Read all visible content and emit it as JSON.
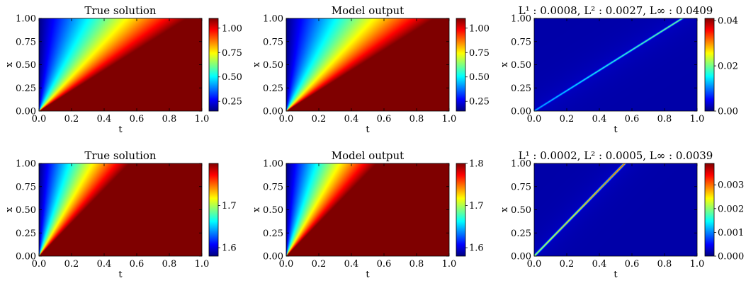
{
  "colors": {
    "colormap": "jet",
    "jet_stops": [
      "#00007f",
      "#0000ff",
      "#007fff",
      "#00ffff",
      "#7fff7f",
      "#ffff00",
      "#ff7f00",
      "#ff0000",
      "#7f0000"
    ],
    "error_background": "#00007f"
  },
  "chart_data": [
    {
      "type": "heatmap",
      "title": "True solution",
      "xlabel": "t",
      "ylabel": "x",
      "xlim": [
        0.0,
        1.0
      ],
      "ylim": [
        0.0,
        1.0
      ],
      "x_ticks": [
        "0.0",
        "0.2",
        "0.4",
        "0.6",
        "0.8",
        "1.0"
      ],
      "y_ticks": [
        "0.00",
        "0.25",
        "0.50",
        "0.75",
        "1.00"
      ],
      "field": {
        "kind": "rarefaction",
        "u_left": 1.1,
        "u_right": 0.15,
        "front_slope": 1.1
      },
      "colorbar": {
        "vmin": 0.15,
        "vmax": 1.1,
        "ticks": [
          0.25,
          0.5,
          0.75,
          1.0
        ],
        "tick_labels": [
          "0.25",
          "0.50",
          "0.75",
          "1.00"
        ]
      }
    },
    {
      "type": "heatmap",
      "title": "Model output",
      "xlabel": "t",
      "ylabel": "x",
      "xlim": [
        0.0,
        1.0
      ],
      "ylim": [
        0.0,
        1.0
      ],
      "x_ticks": [
        "0.0",
        "0.2",
        "0.4",
        "0.6",
        "0.8",
        "1.0"
      ],
      "y_ticks": [
        "0.00",
        "0.25",
        "0.50",
        "0.75",
        "1.00"
      ],
      "field": {
        "kind": "rarefaction",
        "u_left": 1.1,
        "u_right": 0.15,
        "front_slope": 1.1
      },
      "colorbar": {
        "vmin": 0.15,
        "vmax": 1.1,
        "ticks": [
          0.25,
          0.5,
          0.75,
          1.0
        ],
        "tick_labels": [
          "0.25",
          "0.50",
          "0.75",
          "1.00"
        ]
      }
    },
    {
      "type": "heatmap",
      "title": "L¹ : 0.0008, L² : 0.0027, L∞ : 0.0409",
      "xlabel": "t",
      "ylabel": "x",
      "xlim": [
        0.0,
        1.0
      ],
      "ylim": [
        0.0,
        1.0
      ],
      "x_ticks": [
        "0.0",
        "0.2",
        "0.4",
        "0.6",
        "0.8",
        "1.0"
      ],
      "y_ticks": [
        "0.00",
        "0.25",
        "0.50",
        "0.75",
        "1.00"
      ],
      "field": {
        "kind": "error_line",
        "slope": 1.1,
        "peak": 0.02,
        "tail_peak": 0.04
      },
      "colorbar": {
        "vmin": 0.0,
        "vmax": 0.041,
        "ticks": [
          0.0,
          0.02,
          0.04
        ],
        "tick_labels": [
          "0.00",
          "0.02",
          "0.04"
        ]
      }
    },
    {
      "type": "heatmap",
      "title": "True solution",
      "xlabel": "t",
      "ylabel": "x",
      "xlim": [
        0.0,
        1.0
      ],
      "ylim": [
        0.0,
        1.0
      ],
      "x_ticks": [
        "0.0",
        "0.2",
        "0.4",
        "0.6",
        "0.8",
        "1.0"
      ],
      "y_ticks": [
        "0.00",
        "0.25",
        "0.50",
        "0.75",
        "1.00"
      ],
      "field": {
        "kind": "rarefaction",
        "u_left": 1.8,
        "u_right": 1.58,
        "front_slope": 1.8
      },
      "colorbar": {
        "vmin": 1.58,
        "vmax": 1.8,
        "ticks": [
          1.6,
          1.7
        ],
        "tick_labels": [
          "1.6",
          "1.7"
        ]
      }
    },
    {
      "type": "heatmap",
      "title": "Model output",
      "xlabel": "t",
      "ylabel": "x",
      "xlim": [
        0.0,
        1.0
      ],
      "ylim": [
        0.0,
        1.0
      ],
      "x_ticks": [
        "0.0",
        "0.2",
        "0.4",
        "0.6",
        "0.8",
        "1.0"
      ],
      "y_ticks": [
        "0.00",
        "0.25",
        "0.50",
        "0.75",
        "1.00"
      ],
      "field": {
        "kind": "rarefaction",
        "u_left": 1.8,
        "u_right": 1.58,
        "front_slope": 1.8
      },
      "colorbar": {
        "vmin": 1.58,
        "vmax": 1.8,
        "ticks": [
          1.6,
          1.7,
          1.8
        ],
        "tick_labels": [
          "1.6",
          "1.7",
          "1.8"
        ]
      }
    },
    {
      "type": "heatmap",
      "title": "L¹ : 0.0002, L² : 0.0005, L∞ : 0.0039",
      "xlabel": "t",
      "ylabel": "x",
      "xlim": [
        0.0,
        1.0
      ],
      "ylim": [
        0.0,
        1.0
      ],
      "x_ticks": [
        "0.0",
        "0.2",
        "0.4",
        "0.6",
        "0.8",
        "1.0"
      ],
      "y_ticks": [
        "0.00",
        "0.25",
        "0.50",
        "0.75",
        "1.00"
      ],
      "field": {
        "kind": "error_line",
        "slope": 1.8,
        "peak": 0.0039,
        "tail_peak": 0.0039
      },
      "colorbar": {
        "vmin": 0.0,
        "vmax": 0.0039,
        "ticks": [
          0.0,
          0.001,
          0.002,
          0.003
        ],
        "tick_labels": [
          "0.000",
          "0.001",
          "0.002",
          "0.003"
        ]
      }
    }
  ]
}
